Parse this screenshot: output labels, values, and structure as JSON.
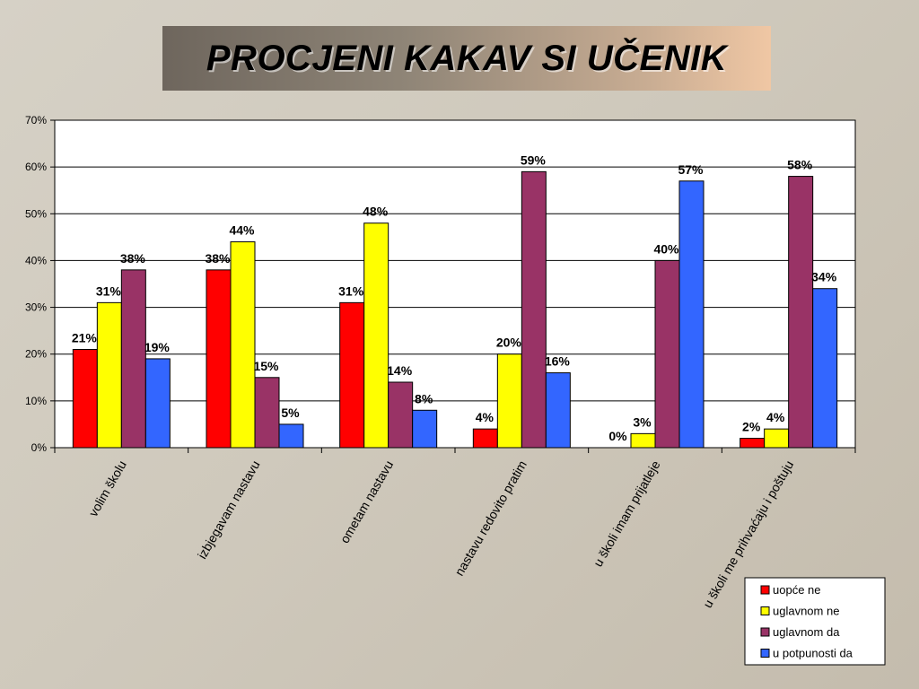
{
  "chart_data": {
    "type": "bar",
    "title": "PROCJENI KAKAV SI UČENIK",
    "categories": [
      "volim školu",
      "izbjegavam nastavu",
      "ometam nastavu",
      "nastavu redovito pratim",
      "u školi imam prijatleje",
      "u školi me prihvaćaju i poštuju"
    ],
    "series": [
      {
        "name": "uopće ne",
        "color": "#ff0000",
        "values": [
          21,
          38,
          31,
          4,
          0,
          2
        ]
      },
      {
        "name": "uglavnom ne",
        "color": "#ffff00",
        "values": [
          31,
          44,
          48,
          20,
          3,
          4
        ]
      },
      {
        "name": "uglavnom da",
        "color": "#993366",
        "values": [
          38,
          15,
          14,
          59,
          40,
          58
        ]
      },
      {
        "name": "u potpunosti da",
        "color": "#3366ff",
        "values": [
          19,
          5,
          8,
          16,
          57,
          34
        ]
      }
    ],
    "ylim": [
      0,
      70
    ],
    "yticks": [
      "0%",
      "10%",
      "20%",
      "30%",
      "40%",
      "50%",
      "60%",
      "70%"
    ],
    "value_suffix": "%",
    "grid": true,
    "legend_position": "bottom-right"
  }
}
